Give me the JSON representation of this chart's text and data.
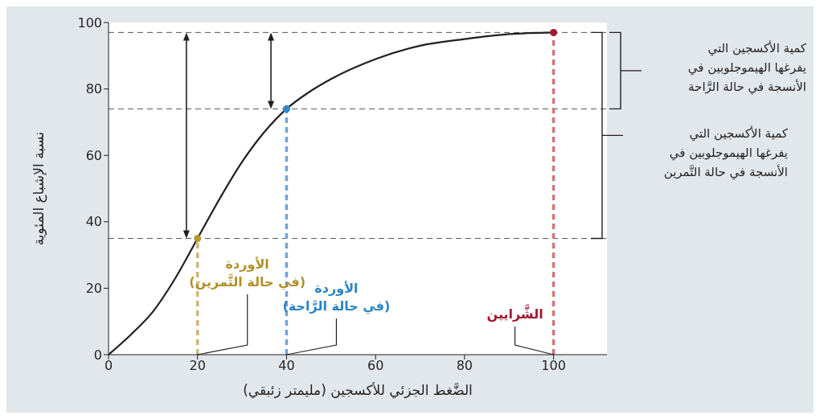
{
  "chart_data": {
    "type": "line",
    "xlabel": "الضَّغط الجزئي للأكسجين (مليمتر زئبقي)",
    "ylabel": "نسبة الإشباع المئوية",
    "xlim": [
      0,
      112
    ],
    "xticks": [
      0,
      20,
      40,
      60,
      80,
      100
    ],
    "ylim": [
      0,
      100
    ],
    "yticks": [
      0,
      20,
      40,
      60,
      80,
      100
    ],
    "grid": false,
    "marker": "none",
    "line_style": "solid",
    "series": [
      {
        "color": "#231f20",
        "x": [
          0,
          5,
          10,
          15,
          20,
          25,
          30,
          35,
          40,
          45,
          50,
          60,
          70,
          80,
          90,
          100
        ],
        "values": [
          0,
          6,
          13,
          23,
          35,
          47,
          58,
          67,
          74,
          79,
          83,
          89,
          93,
          95,
          96.5,
          97
        ]
      },
      {
        "type": "scatter",
        "color": "#b8962e",
        "marker": "circle",
        "x": [
          20
        ],
        "values": [
          35
        ]
      },
      {
        "type": "scatter",
        "color": "#2e86c8",
        "marker": "circle",
        "x": [
          40
        ],
        "values": [
          74
        ]
      },
      {
        "type": "scatter",
        "color": "#a3172f",
        "marker": "circle",
        "x": [
          100
        ],
        "values": [
          97
        ]
      }
    ],
    "ref_lines": [
      {
        "axis": "y",
        "value": 97,
        "color": "#555555",
        "line_style": "dashed"
      },
      {
        "axis": "y",
        "value": 74,
        "color": "#555555",
        "line_style": "dashed"
      },
      {
        "axis": "y",
        "value": 35,
        "color": "#555555",
        "line_style": "dashed"
      },
      {
        "axis": "x",
        "value": 20,
        "color": "#d4b56e",
        "line_style": "dashed"
      },
      {
        "axis": "x",
        "value": 40,
        "color": "#6fa6dc",
        "line_style": "dashed"
      },
      {
        "axis": "x",
        "value": 100,
        "color": "#d4757a",
        "line_style": "dashed"
      }
    ],
    "annotations": [
      {
        "text": "الأوردة\n(في حالة التَّمرين)",
        "x": 20,
        "y": 0
      },
      {
        "text": "الأوردة\n(في حالة الرَّاحة)",
        "x": 40,
        "y": 0
      },
      {
        "text": "الشَّرايين",
        "x": 100,
        "y": 0
      },
      "كمية الأكسجين التي\nيفرغها الهيموجلوبين في\nالأنسجة في حالة الرَّاحة",
      "كمية الأكسجين التي\nيفرغها الهيموجلوبين في\nالأنسجة في حالة التَّمرين"
    ]
  }
}
